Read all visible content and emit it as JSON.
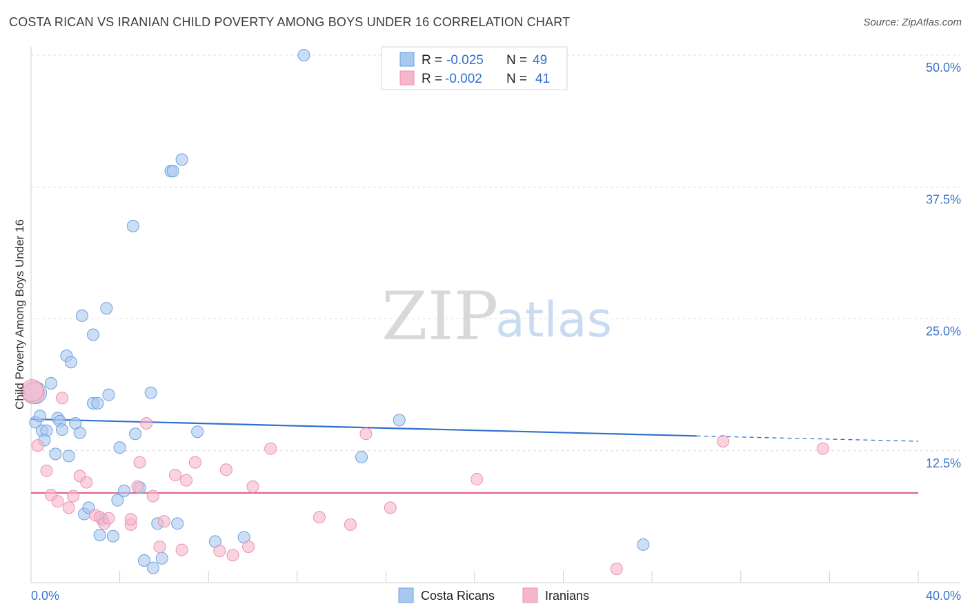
{
  "title": "COSTA RICAN VS IRANIAN CHILD POVERTY AMONG BOYS UNDER 16 CORRELATION CHART",
  "source": "Source: ZipAtlas.com",
  "watermark": {
    "zip": "ZIP",
    "atlas": "atlas"
  },
  "legend": {
    "rows": [
      {
        "r_label": "R =",
        "r_value": "-0.025",
        "n_label": "N =",
        "n_value": "49",
        "color": "#a8c8ef"
      },
      {
        "r_label": "R =",
        "r_value": "-0.002",
        "n_label": "N =",
        "n_value": "41",
        "color": "#f5b8cb"
      }
    ]
  },
  "chart_data": {
    "type": "scatter",
    "title": "COSTA RICAN VS IRANIAN CHILD POVERTY AMONG BOYS UNDER 16 CORRELATION CHART",
    "xlabel": "",
    "ylabel": "Child Poverty Among Boys Under 16",
    "xlim": [
      0,
      40
    ],
    "ylim": [
      0,
      50
    ],
    "x_tick_labels": [
      "0.0%",
      "40.0%"
    ],
    "y_tick_labels": [
      {
        "value": 12.5,
        "label": "12.5%"
      },
      {
        "value": 25.0,
        "label": "25.0%"
      },
      {
        "value": 37.5,
        "label": "37.5%"
      },
      {
        "value": 50.0,
        "label": "50.0%"
      }
    ],
    "grid": true,
    "series": [
      {
        "name": "Costa Ricans",
        "color": "#a8c8ef",
        "stroke": "#6a9fde",
        "line_color": "#2f6fd0",
        "trend": {
          "x": [
            0,
            30.0
          ],
          "y": [
            15.5,
            13.9
          ],
          "dashed_to": [
            40,
            13.4
          ]
        },
        "points": [
          [
            0.2,
            18.0
          ],
          [
            0.2,
            15.2
          ],
          [
            0.4,
            15.8
          ],
          [
            0.5,
            14.4
          ],
          [
            0.7,
            14.4
          ],
          [
            0.6,
            13.5
          ],
          [
            0.9,
            18.9
          ],
          [
            1.1,
            12.2
          ],
          [
            1.2,
            15.6
          ],
          [
            1.3,
            15.3
          ],
          [
            1.4,
            14.5
          ],
          [
            1.6,
            21.5
          ],
          [
            1.7,
            12.0
          ],
          [
            1.8,
            20.9
          ],
          [
            2.0,
            15.1
          ],
          [
            2.2,
            14.2
          ],
          [
            2.3,
            25.3
          ],
          [
            2.4,
            6.5
          ],
          [
            2.6,
            7.1
          ],
          [
            2.8,
            23.5
          ],
          [
            2.8,
            17.0
          ],
          [
            3.0,
            17.0
          ],
          [
            3.1,
            4.5
          ],
          [
            3.2,
            6.0
          ],
          [
            3.4,
            26.0
          ],
          [
            3.5,
            17.8
          ],
          [
            3.7,
            4.4
          ],
          [
            3.9,
            7.8
          ],
          [
            4.0,
            12.8
          ],
          [
            4.2,
            8.7
          ],
          [
            4.6,
            33.8
          ],
          [
            4.7,
            14.1
          ],
          [
            4.9,
            9.0
          ],
          [
            5.1,
            2.1
          ],
          [
            5.4,
            18.0
          ],
          [
            5.5,
            1.4
          ],
          [
            5.7,
            5.6
          ],
          [
            5.9,
            2.3
          ],
          [
            6.3,
            39.0
          ],
          [
            6.4,
            39.0
          ],
          [
            6.6,
            5.6
          ],
          [
            6.8,
            40.1
          ],
          [
            7.5,
            14.3
          ],
          [
            8.3,
            3.9
          ],
          [
            9.6,
            4.3
          ],
          [
            12.3,
            50.0
          ],
          [
            14.9,
            11.9
          ],
          [
            16.6,
            15.4
          ],
          [
            27.6,
            3.6
          ]
        ]
      },
      {
        "name": "Iranians",
        "color": "#f5b8cb",
        "stroke": "#ec8fab",
        "line_color": "#e0608a",
        "trend": {
          "x": [
            0,
            40
          ],
          "y": [
            8.5,
            8.5
          ]
        },
        "points": [
          [
            0.1,
            18.0
          ],
          [
            0.3,
            13.0
          ],
          [
            0.7,
            10.6
          ],
          [
            0.9,
            8.3
          ],
          [
            1.2,
            7.7
          ],
          [
            1.4,
            17.5
          ],
          [
            1.7,
            7.1
          ],
          [
            1.9,
            8.2
          ],
          [
            2.2,
            10.1
          ],
          [
            2.5,
            9.5
          ],
          [
            2.9,
            6.4
          ],
          [
            3.1,
            6.2
          ],
          [
            3.3,
            5.6
          ],
          [
            3.5,
            6.1
          ],
          [
            4.5,
            5.5
          ],
          [
            4.5,
            6.0
          ],
          [
            4.8,
            9.1
          ],
          [
            4.9,
            11.4
          ],
          [
            5.2,
            15.1
          ],
          [
            5.5,
            8.2
          ],
          [
            5.8,
            3.4
          ],
          [
            6.0,
            5.8
          ],
          [
            6.5,
            10.2
          ],
          [
            6.8,
            3.1
          ],
          [
            7.0,
            9.7
          ],
          [
            7.4,
            11.4
          ],
          [
            8.5,
            3.0
          ],
          [
            8.8,
            10.7
          ],
          [
            9.1,
            2.6
          ],
          [
            9.8,
            3.4
          ],
          [
            10.0,
            9.1
          ],
          [
            10.8,
            12.7
          ],
          [
            13.0,
            6.2
          ],
          [
            14.4,
            5.5
          ],
          [
            15.1,
            14.1
          ],
          [
            16.2,
            7.1
          ],
          [
            20.1,
            9.8
          ],
          [
            26.4,
            1.3
          ],
          [
            31.2,
            13.4
          ],
          [
            35.7,
            12.7
          ],
          [
            0.05,
            18.2
          ]
        ]
      }
    ]
  }
}
